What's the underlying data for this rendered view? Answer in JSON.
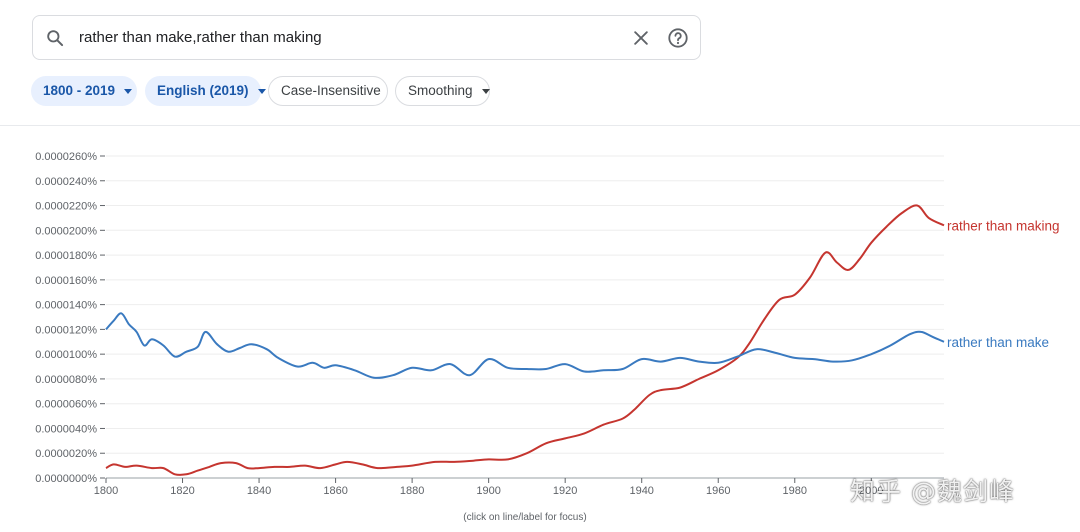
{
  "search": {
    "value": "rather than make,rather than making"
  },
  "chips": [
    {
      "label": "1800 - 2019",
      "style": "active",
      "dropdown": true
    },
    {
      "label": "English (2019)",
      "style": "active",
      "dropdown": true
    },
    {
      "label": "Case-Insensitive",
      "style": "outline",
      "dropdown": false
    },
    {
      "label": "Smoothing",
      "style": "outline",
      "dropdown": true
    }
  ],
  "footnote": "(click on line/label for focus)",
  "watermark": "知乎 @魏剑峰",
  "chart_data": {
    "type": "line",
    "x_range": [
      1800,
      2019
    ],
    "ylim": [
      0,
      2.6e-05
    ],
    "y_ticks": [
      "0.0000000%",
      "0.0000020%",
      "0.0000040%",
      "0.0000060%",
      "0.0000080%",
      "0.0000100%",
      "0.0000120%",
      "0.0000140%",
      "0.0000160%",
      "0.0000180%",
      "0.0000200%",
      "0.0000220%",
      "0.0000240%",
      "0.0000260%"
    ],
    "y_tick_values": [
      0,
      2e-06,
      4e-06,
      6e-06,
      8e-06,
      1e-05,
      1.2e-05,
      1.4e-05,
      1.6e-05,
      1.8e-05,
      2e-05,
      2.2e-05,
      2.4e-05,
      2.6e-05
    ],
    "x_ticks": [
      1800,
      1820,
      1840,
      1860,
      1880,
      1900,
      1920,
      1940,
      1960,
      1980,
      2000
    ],
    "grid": true,
    "series": [
      {
        "name": "rather than making",
        "color": "#c5352f",
        "points": [
          [
            1800,
            8e-07
          ],
          [
            1802,
            1.1e-06
          ],
          [
            1805,
            9e-07
          ],
          [
            1808,
            1e-06
          ],
          [
            1812,
            8e-07
          ],
          [
            1815,
            8e-07
          ],
          [
            1818,
            3e-07
          ],
          [
            1821,
            3e-07
          ],
          [
            1824,
            6e-07
          ],
          [
            1827,
            9e-07
          ],
          [
            1830,
            1.2e-06
          ],
          [
            1834,
            1.2e-06
          ],
          [
            1837,
            8e-07
          ],
          [
            1840,
            8e-07
          ],
          [
            1844,
            9e-07
          ],
          [
            1848,
            9e-07
          ],
          [
            1852,
            1e-06
          ],
          [
            1856,
            8e-07
          ],
          [
            1860,
            1.1e-06
          ],
          [
            1863,
            1.3e-06
          ],
          [
            1867,
            1.1e-06
          ],
          [
            1871,
            8e-07
          ],
          [
            1876,
            9e-07
          ],
          [
            1880,
            1e-06
          ],
          [
            1886,
            1.3e-06
          ],
          [
            1891,
            1.3e-06
          ],
          [
            1896,
            1.4e-06
          ],
          [
            1900,
            1.5e-06
          ],
          [
            1905,
            1.5e-06
          ],
          [
            1910,
            2e-06
          ],
          [
            1915,
            2.8e-06
          ],
          [
            1920,
            3.2e-06
          ],
          [
            1925,
            3.6e-06
          ],
          [
            1930,
            4.3e-06
          ],
          [
            1935,
            4.8e-06
          ],
          [
            1938,
            5.5e-06
          ],
          [
            1942,
            6.7e-06
          ],
          [
            1945,
            7.1e-06
          ],
          [
            1950,
            7.3e-06
          ],
          [
            1955,
            8e-06
          ],
          [
            1960,
            8.7e-06
          ],
          [
            1965,
            9.7e-06
          ],
          [
            1968,
            1.08e-05
          ],
          [
            1972,
            1.28e-05
          ],
          [
            1976,
            1.44e-05
          ],
          [
            1980,
            1.48e-05
          ],
          [
            1984,
            1.62e-05
          ],
          [
            1988,
            1.82e-05
          ],
          [
            1991,
            1.74e-05
          ],
          [
            1994,
            1.68e-05
          ],
          [
            1997,
            1.77e-05
          ],
          [
            2000,
            1.9e-05
          ],
          [
            2004,
            2.03e-05
          ],
          [
            2008,
            2.14e-05
          ],
          [
            2012,
            2.2e-05
          ],
          [
            2015,
            2.1e-05
          ],
          [
            2019,
            2.04e-05
          ]
        ]
      },
      {
        "name": "rather than make",
        "color": "#3a7ac0",
        "points": [
          [
            1800,
            1.2e-05
          ],
          [
            1802,
            1.27e-05
          ],
          [
            1804,
            1.33e-05
          ],
          [
            1806,
            1.24e-05
          ],
          [
            1808,
            1.18e-05
          ],
          [
            1810,
            1.07e-05
          ],
          [
            1812,
            1.12e-05
          ],
          [
            1815,
            1.07e-05
          ],
          [
            1818,
            9.8e-06
          ],
          [
            1821,
            1.02e-05
          ],
          [
            1824,
            1.06e-05
          ],
          [
            1826,
            1.18e-05
          ],
          [
            1829,
            1.08e-05
          ],
          [
            1832,
            1.02e-05
          ],
          [
            1835,
            1.05e-05
          ],
          [
            1838,
            1.08e-05
          ],
          [
            1842,
            1.04e-05
          ],
          [
            1845,
            9.7e-06
          ],
          [
            1850,
            9e-06
          ],
          [
            1854,
            9.3e-06
          ],
          [
            1857,
            8.9e-06
          ],
          [
            1860,
            9.1e-06
          ],
          [
            1865,
            8.7e-06
          ],
          [
            1870,
            8.1e-06
          ],
          [
            1875,
            8.3e-06
          ],
          [
            1880,
            8.9e-06
          ],
          [
            1885,
            8.7e-06
          ],
          [
            1890,
            9.2e-06
          ],
          [
            1895,
            8.3e-06
          ],
          [
            1900,
            9.6e-06
          ],
          [
            1905,
            8.9e-06
          ],
          [
            1910,
            8.8e-06
          ],
          [
            1915,
            8.8e-06
          ],
          [
            1920,
            9.2e-06
          ],
          [
            1925,
            8.6e-06
          ],
          [
            1930,
            8.7e-06
          ],
          [
            1935,
            8.8e-06
          ],
          [
            1940,
            9.6e-06
          ],
          [
            1945,
            9.4e-06
          ],
          [
            1950,
            9.7e-06
          ],
          [
            1955,
            9.4e-06
          ],
          [
            1960,
            9.3e-06
          ],
          [
            1965,
            9.8e-06
          ],
          [
            1970,
            1.04e-05
          ],
          [
            1975,
            1.01e-05
          ],
          [
            1980,
            9.7e-06
          ],
          [
            1985,
            9.6e-06
          ],
          [
            1990,
            9.4e-06
          ],
          [
            1995,
            9.5e-06
          ],
          [
            2000,
            1e-05
          ],
          [
            2005,
            1.07e-05
          ],
          [
            2010,
            1.16e-05
          ],
          [
            2013,
            1.18e-05
          ],
          [
            2016,
            1.14e-05
          ],
          [
            2019,
            1.1e-05
          ]
        ]
      }
    ]
  }
}
